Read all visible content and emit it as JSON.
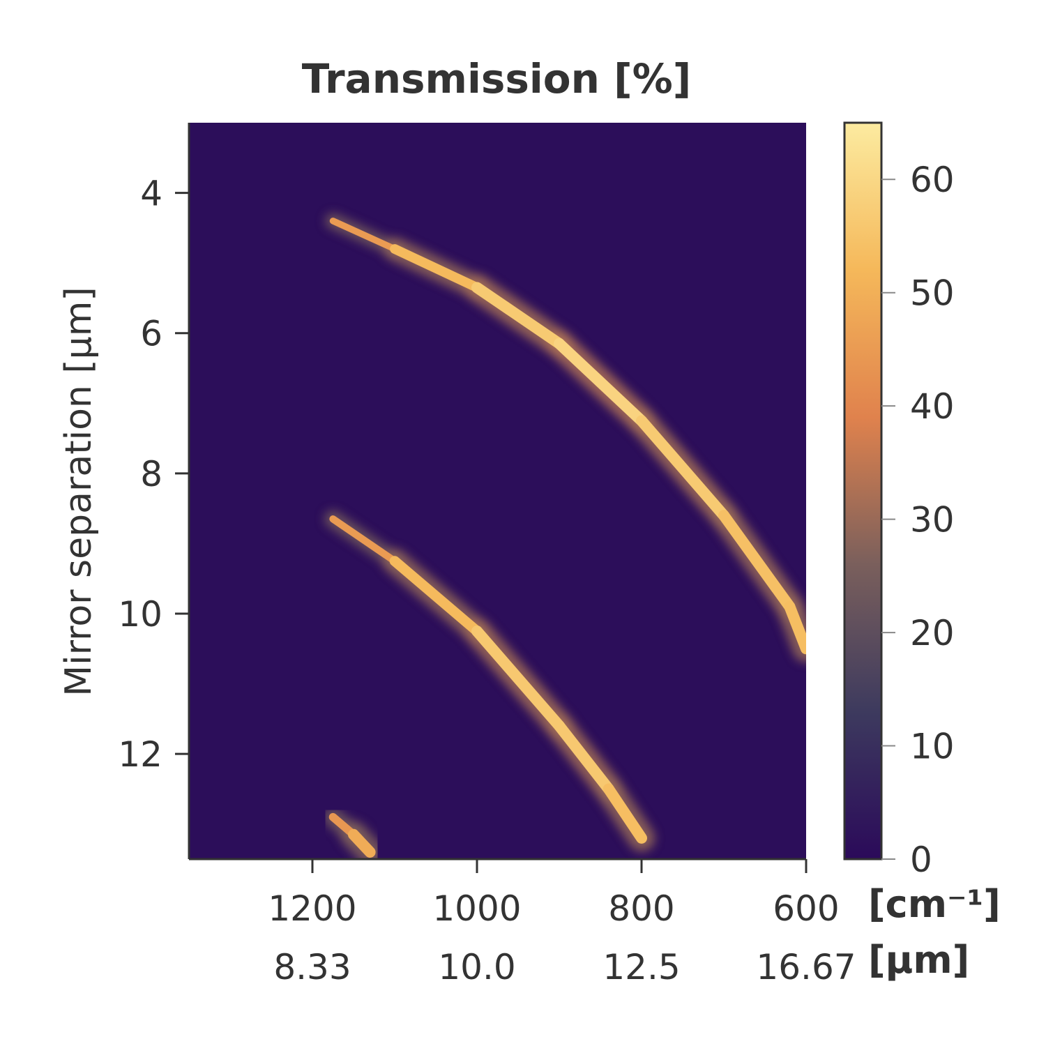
{
  "chart_data": {
    "type": "heatmap",
    "title": "Transmission [%]",
    "xlabel": "",
    "ylabel": "Mirror separation [µm]",
    "x_unit_label": "[cm⁻¹]",
    "x2_unit_label": "[µm]",
    "xlim": [
      1350,
      600
    ],
    "ylim": [
      13.5,
      3
    ],
    "x_ticks": [
      {
        "value": 1200,
        "label": "1200",
        "label2": "8.33"
      },
      {
        "value": 1000,
        "label": "1000",
        "label2": "10.0"
      },
      {
        "value": 800,
        "label": "800",
        "label2": "12.5"
      },
      {
        "value": 600,
        "label": "600",
        "label2": "16.67"
      }
    ],
    "y_ticks": [
      {
        "value": 4,
        "label": "4"
      },
      {
        "value": 6,
        "label": "6"
      },
      {
        "value": 8,
        "label": "8"
      },
      {
        "value": 10,
        "label": "10"
      },
      {
        "value": 12,
        "label": "12"
      }
    ],
    "colorbar": {
      "min": 0,
      "max": 65,
      "ticks": [
        {
          "value": 0,
          "label": "0"
        },
        {
          "value": 10,
          "label": "10"
        },
        {
          "value": 20,
          "label": "20"
        },
        {
          "value": 30,
          "label": "30"
        },
        {
          "value": 40,
          "label": "40"
        },
        {
          "value": 50,
          "label": "50"
        },
        {
          "value": 60,
          "label": "60"
        }
      ],
      "colormap": [
        "#2b0a5a",
        "#3d3a5e",
        "#7a5f5c",
        "#e0824d",
        "#f5b85a",
        "#fceba0"
      ]
    },
    "background_value": 1,
    "series": [
      {
        "points": [
          {
            "x": 1175,
            "y": 4.4,
            "v": 40
          },
          {
            "x": 1100,
            "y": 4.8,
            "v": 50
          },
          {
            "x": 1000,
            "y": 5.35,
            "v": 55
          },
          {
            "x": 900,
            "y": 6.15,
            "v": 58
          },
          {
            "x": 800,
            "y": 7.25,
            "v": 60
          },
          {
            "x": 700,
            "y": 8.6,
            "v": 53
          },
          {
            "x": 620,
            "y": 9.9,
            "v": 55
          },
          {
            "x": 600,
            "y": 10.5,
            "v": 52
          }
        ]
      },
      {
        "points": [
          {
            "x": 1175,
            "y": 8.65,
            "v": 40
          },
          {
            "x": 1100,
            "y": 9.25,
            "v": 50
          },
          {
            "x": 1000,
            "y": 10.25,
            "v": 55
          },
          {
            "x": 900,
            "y": 11.6,
            "v": 57
          },
          {
            "x": 840,
            "y": 12.5,
            "v": 55
          },
          {
            "x": 800,
            "y": 13.2,
            "v": 52
          }
        ]
      },
      {
        "points": [
          {
            "x": 1175,
            "y": 12.9,
            "v": 40
          },
          {
            "x": 1150,
            "y": 13.15,
            "v": 48
          },
          {
            "x": 1130,
            "y": 13.4,
            "v": 50
          }
        ]
      }
    ]
  }
}
